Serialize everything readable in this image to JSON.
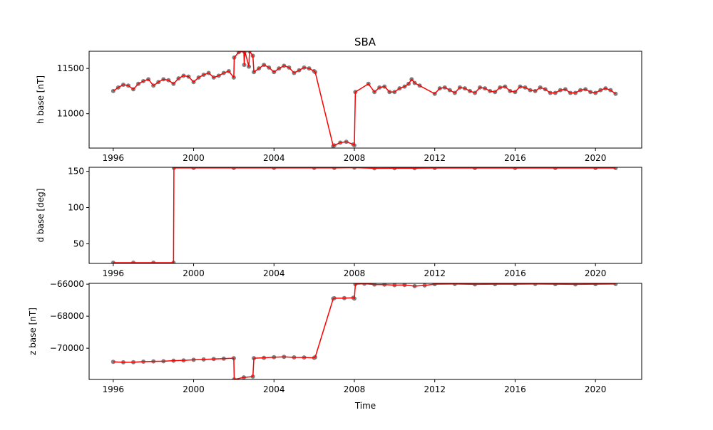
{
  "title": "SBA",
  "colors": {
    "points": "#808080",
    "line": "#ff0000",
    "axes": "#000000"
  },
  "chart_data": [
    {
      "type": "line",
      "title": "SBA",
      "xlabel": "",
      "ylabel": "h base [nT]",
      "xlim": [
        1994.8,
        2022.3
      ],
      "ylim": [
        10620,
        11690
      ],
      "xticks": [
        1996,
        2000,
        2004,
        2008,
        2012,
        2016,
        2020
      ],
      "yticks": [
        11000,
        11500
      ],
      "xtick_labels": [
        "1996",
        "2000",
        "2004",
        "2008",
        "2012",
        "2016",
        "2020"
      ],
      "ytick_labels": [
        "11000",
        "11500"
      ],
      "series": [
        {
          "style": "scatter-points",
          "color": "#808080"
        },
        {
          "style": "line",
          "color": "#ff0000"
        }
      ],
      "x": [
        1996.0,
        1996.25,
        1996.5,
        1996.75,
        1997.0,
        1997.25,
        1997.5,
        1997.75,
        1998.0,
        1998.25,
        1998.5,
        1998.75,
        1999.0,
        1999.25,
        1999.5,
        1999.75,
        2000.0,
        2000.25,
        2000.5,
        2000.75,
        2001.0,
        2001.25,
        2001.5,
        2001.75,
        2002.0,
        2002.02,
        2002.25,
        2002.5,
        2002.52,
        2002.55,
        2002.75,
        2002.78,
        2002.95,
        2003.0,
        2003.25,
        2003.5,
        2003.75,
        2004.0,
        2004.25,
        2004.5,
        2004.75,
        2005.0,
        2005.25,
        2005.5,
        2005.75,
        2006.0,
        2006.05,
        2006.95,
        2007.0,
        2007.3,
        2007.6,
        2007.95,
        2008.0,
        2008.05,
        2008.7,
        2009.0,
        2009.25,
        2009.5,
        2009.75,
        2010.0,
        2010.25,
        2010.5,
        2010.7,
        2010.85,
        2011.0,
        2011.25,
        2012.0,
        2012.25,
        2012.5,
        2012.75,
        2013.0,
        2013.25,
        2013.5,
        2013.75,
        2014.0,
        2014.25,
        2014.5,
        2014.75,
        2015.0,
        2015.25,
        2015.5,
        2015.75,
        2016.0,
        2016.25,
        2016.5,
        2016.75,
        2017.0,
        2017.25,
        2017.5,
        2017.75,
        2018.0,
        2018.25,
        2018.5,
        2018.75,
        2019.0,
        2019.25,
        2019.5,
        2019.75,
        2020.0,
        2020.25,
        2020.5,
        2020.75,
        2021.0
      ],
      "y": [
        11250,
        11290,
        11320,
        11310,
        11270,
        11330,
        11360,
        11380,
        11310,
        11350,
        11380,
        11370,
        11330,
        11390,
        11420,
        11410,
        11350,
        11400,
        11430,
        11450,
        11400,
        11420,
        11450,
        11470,
        11400,
        11620,
        11680,
        11690,
        11540,
        11690,
        11520,
        11690,
        11640,
        11460,
        11500,
        11540,
        11510,
        11460,
        11500,
        11530,
        11510,
        11450,
        11480,
        11510,
        11500,
        11470,
        11460,
        10640,
        10650,
        10680,
        10690,
        10660,
        10650,
        11240,
        11330,
        11240,
        11290,
        11300,
        11240,
        11240,
        11280,
        11300,
        11330,
        11380,
        11340,
        11310,
        11220,
        11280,
        11290,
        11260,
        11230,
        11290,
        11280,
        11250,
        11230,
        11290,
        11280,
        11250,
        11240,
        11290,
        11300,
        11250,
        11240,
        11300,
        11290,
        11260,
        11250,
        11290,
        11270,
        11230,
        11230,
        11260,
        11270,
        11230,
        11230,
        11260,
        11270,
        11240,
        11230,
        11260,
        11280,
        11260,
        11220
      ]
    },
    {
      "type": "line",
      "title": "",
      "xlabel": "",
      "ylabel": "d base [deg]",
      "xlim": [
        1994.8,
        2022.3
      ],
      "ylim": [
        23,
        155.5
      ],
      "xticks": [
        1996,
        2000,
        2004,
        2008,
        2012,
        2016,
        2020
      ],
      "yticks": [
        50,
        100,
        150
      ],
      "xtick_labels": [
        "1996",
        "2000",
        "2004",
        "2008",
        "2012",
        "2016",
        "2020"
      ],
      "ytick_labels": [
        "50",
        "100",
        "150"
      ],
      "series": [
        {
          "style": "scatter-points",
          "color": "#808080"
        },
        {
          "style": "line",
          "color": "#ff0000"
        }
      ],
      "x": [
        1996.0,
        1997.0,
        1998.0,
        1999.0,
        1999.02,
        2000.0,
        2002.0,
        2004.0,
        2006.0,
        2007.0,
        2008.0,
        2009.0,
        2010.0,
        2011.0,
        2012.0,
        2014.0,
        2016.0,
        2018.0,
        2020.0,
        2021.0
      ],
      "y": [
        24,
        24,
        24,
        24,
        154.6,
        154.6,
        154.6,
        154.7,
        154.6,
        154.7,
        155,
        154.2,
        154.3,
        154.3,
        154.5,
        154.5,
        154.5,
        154.5,
        154.5,
        154.5
      ]
    },
    {
      "type": "line",
      "title": "",
      "xlabel": "Time",
      "ylabel": "z base [nT]",
      "xlim": [
        1994.8,
        2022.3
      ],
      "ylim": [
        -71950,
        -65950
      ],
      "xticks": [
        1996,
        2000,
        2004,
        2008,
        2012,
        2016,
        2020
      ],
      "yticks": [
        -70000,
        -68000,
        -66000
      ],
      "xtick_labels": [
        "1996",
        "2000",
        "2004",
        "2008",
        "2012",
        "2016",
        "2020"
      ],
      "ytick_labels": [
        "−70000",
        "−68000",
        "−66000"
      ],
      "series": [
        {
          "style": "scatter-points",
          "color": "#808080"
        },
        {
          "style": "line",
          "color": "#ff0000"
        }
      ],
      "x": [
        1996.0,
        1996.5,
        1997.0,
        1997.5,
        1998.0,
        1998.5,
        1999.0,
        1999.5,
        2000.0,
        2000.5,
        2001.0,
        2001.5,
        2002.0,
        2002.02,
        2002.5,
        2002.95,
        2003.0,
        2003.5,
        2004.0,
        2004.5,
        2005.0,
        2005.5,
        2006.0,
        2006.05,
        2006.95,
        2007.0,
        2007.5,
        2007.95,
        2008.0,
        2008.05,
        2008.5,
        2009.0,
        2009.5,
        2010.0,
        2010.5,
        2011.0,
        2011.5,
        2012.0,
        2013.0,
        2014.0,
        2015.0,
        2016.0,
        2017.0,
        2018.0,
        2019.0,
        2020.0,
        2021.0
      ],
      "y": [
        -70850,
        -70880,
        -70870,
        -70840,
        -70820,
        -70810,
        -70780,
        -70760,
        -70720,
        -70700,
        -70670,
        -70650,
        -70620,
        -71950,
        -71820,
        -71770,
        -70620,
        -70600,
        -70560,
        -70540,
        -70570,
        -70580,
        -70600,
        -70560,
        -66900,
        -66880,
        -66870,
        -66850,
        -66900,
        -66000,
        -65970,
        -66020,
        -66030,
        -66060,
        -66050,
        -66120,
        -66080,
        -66000,
        -65990,
        -66010,
        -66000,
        -66000,
        -65990,
        -66000,
        -66010,
        -66000,
        -65990
      ]
    }
  ]
}
